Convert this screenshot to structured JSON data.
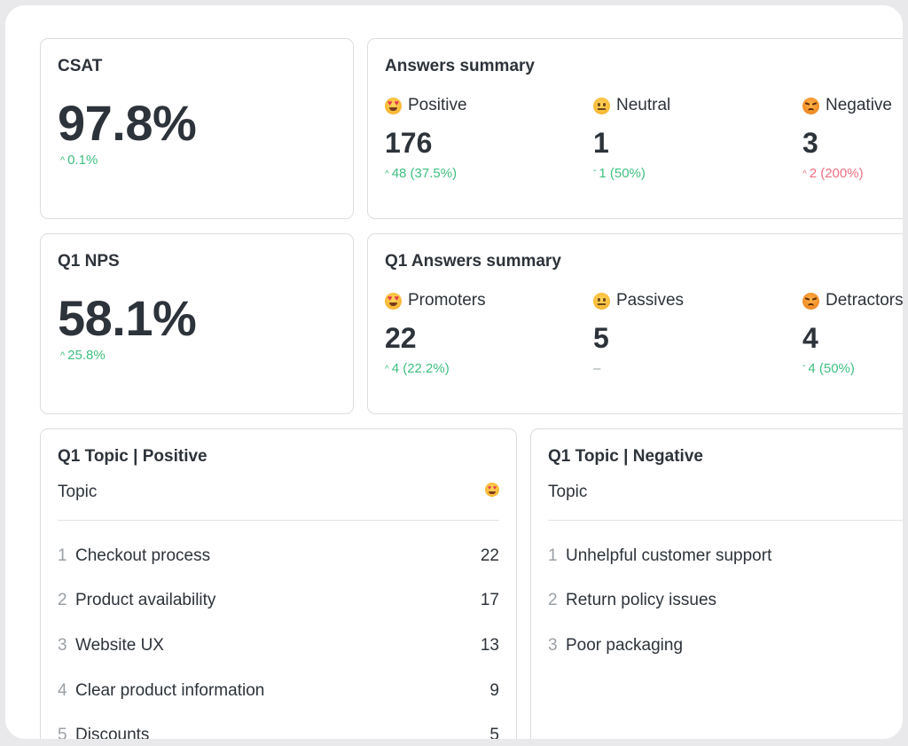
{
  "csat": {
    "title": "CSAT",
    "value": "97.8%",
    "delta": "0.1%",
    "delta_direction": "up"
  },
  "answers_summary": {
    "title": "Answers summary",
    "metrics": [
      {
        "label": "Positive",
        "icon": "heart-eyes-emoji-icon",
        "value": "176",
        "delta": "48 (37.5%)",
        "direction": "up",
        "color": "#3fbf7f"
      },
      {
        "label": "Neutral",
        "icon": "neutral-face-emoji-icon",
        "value": "1",
        "delta": "1 (50%)",
        "direction": "down",
        "color": "#3fbf7f"
      },
      {
        "label": "Negative",
        "icon": "angry-face-emoji-icon",
        "value": "3",
        "delta": "2 (200%)",
        "direction": "up",
        "color": "#ef6f80"
      }
    ]
  },
  "nps": {
    "title": "Q1 NPS",
    "value": "58.1%",
    "delta": "25.8%",
    "delta_direction": "up"
  },
  "q1_answers_summary": {
    "title": "Q1 Answers summary",
    "metrics": [
      {
        "label": "Promoters",
        "icon": "heart-eyes-emoji-icon",
        "value": "22",
        "delta": "4 (22.2%)",
        "direction": "up",
        "color": "#3fbf7f"
      },
      {
        "label": "Passives",
        "icon": "neutral-face-emoji-icon",
        "value": "5",
        "delta": "–",
        "direction": "none",
        "color": "#9aa0a6"
      },
      {
        "label": "Detractors",
        "icon": "angry-face-emoji-icon",
        "value": "4",
        "delta": "4 (50%)",
        "direction": "down",
        "color": "#3fbf7f"
      }
    ]
  },
  "topic_positive": {
    "title": "Q1 Topic | Positive",
    "column_header": "Topic",
    "rows": [
      {
        "rank": "1",
        "topic": "Checkout process",
        "count": "22"
      },
      {
        "rank": "2",
        "topic": "Product availability",
        "count": "17"
      },
      {
        "rank": "3",
        "topic": "Website UX",
        "count": "13"
      },
      {
        "rank": "4",
        "topic": "Clear product information",
        "count": "9"
      },
      {
        "rank": "5",
        "topic": "Discounts",
        "count": "5"
      }
    ]
  },
  "topic_negative": {
    "title": "Q1 Topic | Negative",
    "column_header": "Topic",
    "rows": [
      {
        "rank": "1",
        "topic": "Unhelpful customer support"
      },
      {
        "rank": "2",
        "topic": "Return policy issues"
      },
      {
        "rank": "3",
        "topic": "Poor packaging"
      }
    ]
  },
  "colors": {
    "positive": "#3fbf7f",
    "negative": "#ef6f80",
    "muted": "#9aa0a6"
  }
}
